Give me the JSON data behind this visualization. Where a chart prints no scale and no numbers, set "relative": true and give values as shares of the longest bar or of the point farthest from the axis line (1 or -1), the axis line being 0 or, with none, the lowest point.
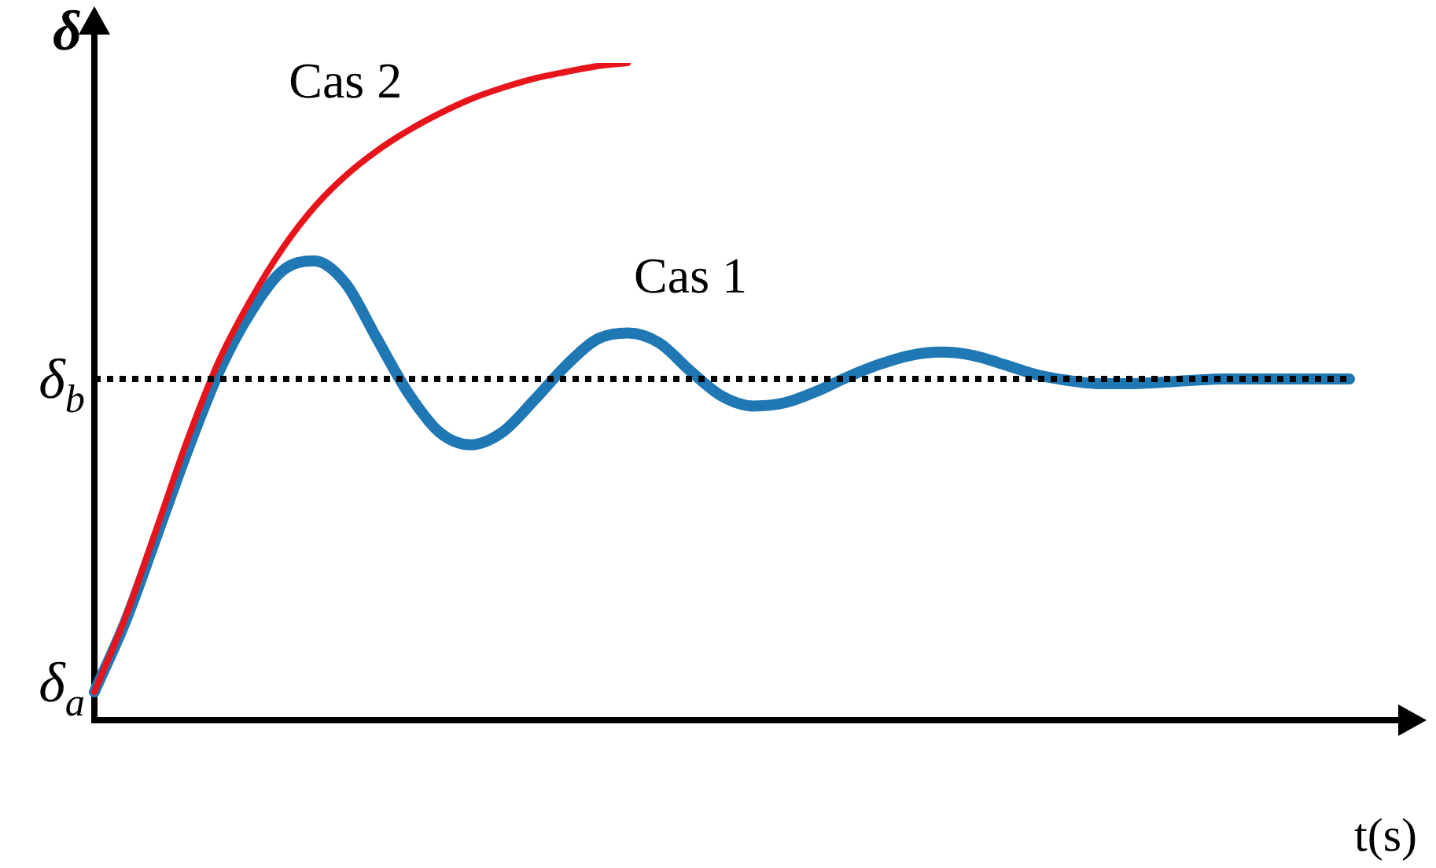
{
  "chart_data": {
    "type": "line",
    "relative": true,
    "ylabel": "δ",
    "xlabel": "t(s)",
    "legend": false,
    "grid": false,
    "marker": "none",
    "line_style": "solid",
    "categories": [
      null,
      null,
      null,
      null,
      null,
      null,
      null,
      null,
      null,
      null,
      null,
      null,
      null,
      null,
      null,
      null,
      null,
      null,
      null,
      null,
      null,
      null,
      null,
      null,
      null,
      null,
      null,
      null,
      null,
      null,
      null,
      null,
      null,
      null,
      null,
      null,
      null,
      null,
      null,
      null,
      null
    ],
    "series": [
      {
        "name": "Cas 1",
        "color": "#1f77b4",
        "values": [
          0.043,
          0.151,
          0.282,
          0.414,
          0.533,
          0.622,
          0.684,
          0.699,
          0.665,
          0.581,
          0.498,
          0.438,
          0.419,
          0.438,
          0.486,
          0.538,
          0.579,
          0.589,
          0.574,
          0.531,
          0.493,
          0.478,
          0.483,
          0.5,
          0.522,
          0.541,
          0.555,
          0.56,
          0.555,
          0.541,
          0.526,
          0.517,
          0.512,
          0.512,
          0.514,
          0.517,
          0.519,
          0.519,
          0.519,
          0.519,
          0.519
        ]
      },
      {
        "name": "Cas 2",
        "color": "#e8141c",
        "values": [
          0.043,
          0.158,
          0.294,
          0.431,
          0.55,
          0.641,
          0.718,
          0.78,
          0.828,
          0.866,
          0.897,
          0.923,
          0.945,
          0.962,
          0.976,
          0.986,
          0.995,
          1,
          null,
          null,
          null,
          null,
          null,
          null,
          null,
          null,
          null,
          null,
          null,
          null,
          null,
          null,
          null,
          null,
          null,
          null,
          null,
          null,
          null,
          null,
          null
        ]
      }
    ],
    "ref_lines": [
      {
        "axis": "y",
        "value": 0.519,
        "label": "δ$_{b}$",
        "color": "#000000",
        "line_style": "dotted"
      }
    ],
    "annotations": [
      "δ$_{a}$"
    ]
  }
}
